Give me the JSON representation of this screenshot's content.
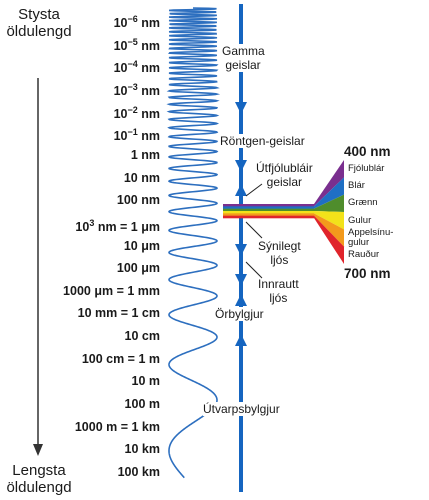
{
  "axis": {
    "top_label_line1": "Stysta",
    "top_label_line2": "öldulengd",
    "bottom_label_line1": "Lengsta",
    "bottom_label_line2": "öldulengd"
  },
  "wavelength_ticks": [
    {
      "html": "10<sup>−6</sup> nm"
    },
    {
      "html": "10<sup>−5</sup> nm"
    },
    {
      "html": "10<sup>−4</sup> nm"
    },
    {
      "html": "10<sup>−3</sup> nm"
    },
    {
      "html": "10<sup>−2</sup> nm"
    },
    {
      "html": "10<sup>−1</sup> nm"
    },
    {
      "html": "1 nm"
    },
    {
      "html": "10 nm"
    },
    {
      "html": "100 nm"
    },
    {
      "html": "10<sup>3</sup> nm = 1 μm"
    },
    {
      "html": "10 μm"
    },
    {
      "html": "100 μm"
    },
    {
      "html": "1000 μm = 1 mm"
    },
    {
      "html": "10 mm = 1 cm"
    },
    {
      "html": "10 cm"
    },
    {
      "html": "100 cm = 1 m"
    },
    {
      "html": "10 m"
    },
    {
      "html": "100 m"
    },
    {
      "html": "1000 m = 1 km"
    },
    {
      "html": "10 km"
    },
    {
      "html": "100 km"
    }
  ],
  "regions": {
    "gamma_line1": "Gamma",
    "gamma_line2": "geislar",
    "xray": "Röntgen-geislar",
    "uv_line1": "Útfjólubláir",
    "uv_line2": "geislar",
    "visible_line1": "Sýnilegt",
    "visible_line2": "ljós",
    "infrared_line1": "Innrautt",
    "infrared_line2": "ljós",
    "microwave": "Örbylgjur",
    "radio": "Útvarpsbylgjur"
  },
  "visible_spectrum": {
    "top_wavelength": "400 nm",
    "bottom_wavelength": "700 nm",
    "colors": [
      {
        "label_line1": "Fjólublár",
        "label_line2": "",
        "hex": "#7a2f8f"
      },
      {
        "label_line1": "Blár",
        "label_line2": "",
        "hex": "#1f6fc4"
      },
      {
        "label_line1": "Grænn",
        "label_line2": "",
        "hex": "#4f8d2c"
      },
      {
        "label_line1": "Gulur",
        "label_line2": "",
        "hex": "#f2e21a"
      },
      {
        "label_line1": "Appelsínu-",
        "label_line2": "gulur",
        "hex": "#f39a1c"
      },
      {
        "label_line1": "Rauður",
        "label_line2": "",
        "hex": "#e0242b"
      }
    ]
  },
  "colors": {
    "axis_blue": "#1565c0",
    "wave_blue": "#2d6fbf",
    "text": "#1a1a1a"
  }
}
